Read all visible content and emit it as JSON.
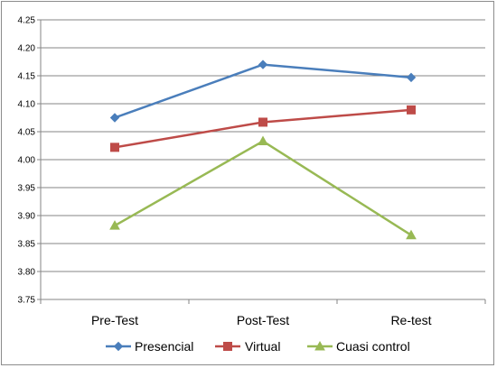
{
  "chart_data": {
    "type": "line",
    "categories": [
      "Pre-Test",
      "Post-Test",
      "Re-test"
    ],
    "ylim": [
      3.75,
      4.25
    ],
    "yticks": [
      "3.75",
      "3.80",
      "3.85",
      "3.90",
      "3.95",
      "4.00",
      "4.05",
      "4.10",
      "4.15",
      "4.20",
      "4.25"
    ],
    "grid": true,
    "legend_position": "bottom",
    "series": [
      {
        "name": "Presencial",
        "values": [
          4.075,
          4.17,
          4.147
        ],
        "color": "#4a7ebb",
        "marker": "diamond"
      },
      {
        "name": "Virtual",
        "values": [
          4.022,
          4.067,
          4.089
        ],
        "color": "#be4b48",
        "marker": "square"
      },
      {
        "name": "Cuasi control",
        "values": [
          3.882,
          4.033,
          3.865
        ],
        "color": "#98b954",
        "marker": "triangle"
      }
    ]
  }
}
